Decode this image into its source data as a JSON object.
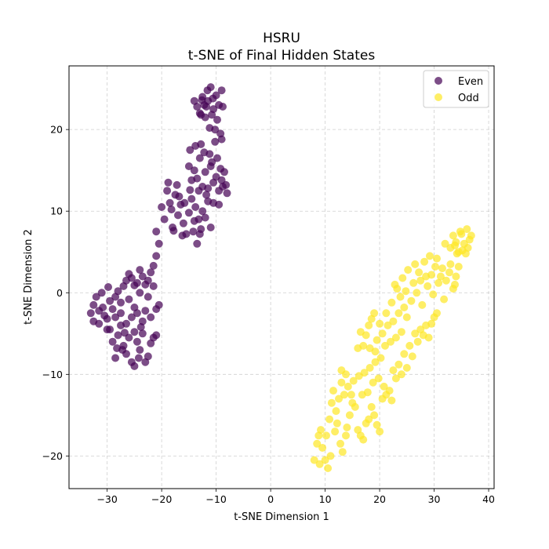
{
  "chart_data": {
    "type": "scatter",
    "title": "HSRU",
    "subtitle": "t-SNE of Final Hidden States",
    "xlabel": "t-SNE Dimension 1",
    "ylabel": "t-SNE Dimension 2",
    "xlim": [
      -37,
      41
    ],
    "ylim": [
      -24,
      27.8
    ],
    "xticks": [
      -30,
      -20,
      -10,
      0,
      10,
      20,
      30,
      40
    ],
    "yticks": [
      -20,
      -10,
      0,
      10,
      20
    ],
    "grid": true,
    "legend_position": "top-right",
    "series": [
      {
        "name": "Even",
        "color": "#440154",
        "points": [
          [
            -33.0,
            -2.5
          ],
          [
            -32.5,
            -1.5
          ],
          [
            -32.0,
            -0.5
          ],
          [
            -31.5,
            -3.8
          ],
          [
            -31.0,
            0.0
          ],
          [
            -30.5,
            -2.8
          ],
          [
            -30.0,
            -4.5
          ],
          [
            -29.5,
            -1.0
          ],
          [
            -29.0,
            -2.0
          ],
          [
            -28.5,
            -3.0
          ],
          [
            -30.8,
            -1.8
          ],
          [
            -29.8,
            0.7
          ],
          [
            -28.0,
            0.2
          ],
          [
            -27.5,
            -1.2
          ],
          [
            -27.0,
            0.8
          ],
          [
            -26.5,
            1.5
          ],
          [
            -26.0,
            2.3
          ],
          [
            -25.5,
            1.8
          ],
          [
            -25.0,
            0.9
          ],
          [
            -24.5,
            1.2
          ],
          [
            -24.0,
            2.8
          ],
          [
            -23.5,
            2.0
          ],
          [
            -23.0,
            1.0
          ],
          [
            -22.5,
            1.5
          ],
          [
            -22.0,
            2.5
          ],
          [
            -21.5,
            3.3
          ],
          [
            -21.0,
            4.5
          ],
          [
            -20.5,
            6.0
          ],
          [
            -29.0,
            -6.0
          ],
          [
            -28.5,
            -8.0
          ],
          [
            -28.0,
            -5.2
          ],
          [
            -27.5,
            -4.0
          ],
          [
            -27.0,
            -6.5
          ],
          [
            -26.5,
            -7.5
          ],
          [
            -26.0,
            -5.5
          ],
          [
            -25.5,
            -8.5
          ],
          [
            -25.0,
            -9.0
          ],
          [
            -24.5,
            -6.0
          ],
          [
            -24.0,
            -7.0
          ],
          [
            -23.5,
            -5.0
          ],
          [
            -23.0,
            -8.5
          ],
          [
            -22.5,
            -7.8
          ],
          [
            -22.0,
            -6.2
          ],
          [
            -21.5,
            -5.5
          ],
          [
            -23.5,
            -3.5
          ],
          [
            -24.5,
            -2.5
          ],
          [
            -25.5,
            -3.0
          ],
          [
            -26.5,
            -3.8
          ],
          [
            -25.0,
            -1.8
          ],
          [
            -23.0,
            -2.2
          ],
          [
            -22.0,
            -3.0
          ],
          [
            -21.0,
            -2.0
          ],
          [
            -22.5,
            -0.5
          ],
          [
            -24.0,
            0.0
          ],
          [
            -26.0,
            -0.8
          ],
          [
            -27.5,
            -2.5
          ],
          [
            -28.5,
            -0.5
          ],
          [
            -30.0,
            -3.2
          ],
          [
            -31.5,
            -2.2
          ],
          [
            -32.5,
            -3.5
          ],
          [
            -25.0,
            -4.8
          ],
          [
            -23.8,
            -4.2
          ],
          [
            -26.8,
            -4.9
          ],
          [
            -28.2,
            -6.8
          ],
          [
            -21.5,
            0.8
          ],
          [
            -20.5,
            -1.5
          ],
          [
            -21.0,
            -5.2
          ],
          [
            -24.2,
            -8.0
          ],
          [
            -27.2,
            -7.0
          ],
          [
            -29.5,
            -4.5
          ],
          [
            -21.0,
            7.5
          ],
          [
            -20.0,
            10.5
          ],
          [
            -19.5,
            9.0
          ],
          [
            -19.0,
            12.5
          ],
          [
            -18.5,
            11.0
          ],
          [
            -18.0,
            8.0
          ],
          [
            -17.5,
            12.0
          ],
          [
            -17.0,
            9.5
          ],
          [
            -16.5,
            10.8
          ],
          [
            -16.0,
            8.5
          ],
          [
            -15.5,
            7.2
          ],
          [
            -15.0,
            9.8
          ],
          [
            -14.5,
            11.5
          ],
          [
            -14.0,
            8.8
          ],
          [
            -13.5,
            6.0
          ],
          [
            -13.0,
            7.2
          ],
          [
            -12.5,
            10.0
          ],
          [
            -12.0,
            9.2
          ],
          [
            -11.5,
            11.2
          ],
          [
            -11.0,
            8.0
          ],
          [
            -18.8,
            13.5
          ],
          [
            -17.2,
            13.2
          ],
          [
            -16.8,
            11.8
          ],
          [
            -15.8,
            11.0
          ],
          [
            -14.8,
            12.6
          ],
          [
            -13.8,
            10.5
          ],
          [
            -13.2,
            9.0
          ],
          [
            -12.8,
            7.8
          ],
          [
            -18.2,
            10.2
          ],
          [
            -17.8,
            7.6
          ],
          [
            -16.2,
            7.0
          ],
          [
            -14.2,
            7.5
          ],
          [
            -15.0,
            15.5
          ],
          [
            -14.5,
            13.8
          ],
          [
            -14.0,
            15.0
          ],
          [
            -13.5,
            14.0
          ],
          [
            -13.0,
            16.5
          ],
          [
            -12.5,
            13.0
          ],
          [
            -12.0,
            14.8
          ],
          [
            -11.5,
            12.8
          ],
          [
            -11.0,
            15.5
          ],
          [
            -10.5,
            13.5
          ],
          [
            -10.0,
            14.2
          ],
          [
            -9.5,
            12.5
          ],
          [
            -9.0,
            13.8
          ],
          [
            -8.5,
            14.8
          ],
          [
            -8.0,
            12.2
          ],
          [
            -10.8,
            16.0
          ],
          [
            -9.2,
            15.2
          ],
          [
            -8.2,
            13.2
          ],
          [
            -12.2,
            17.2
          ],
          [
            -11.2,
            17.0
          ],
          [
            -10.2,
            18.5
          ],
          [
            -12.8,
            18.2
          ],
          [
            -9.8,
            16.5
          ],
          [
            -11.8,
            12.0
          ],
          [
            -13.2,
            12.5
          ],
          [
            -10.5,
            11.0
          ],
          [
            -9.5,
            10.8
          ],
          [
            -8.8,
            13.0
          ],
          [
            -14.8,
            17.5
          ],
          [
            -13.8,
            18.0
          ],
          [
            -14.0,
            23.5
          ],
          [
            -13.5,
            22.8
          ],
          [
            -13.0,
            22.0
          ],
          [
            -12.5,
            24.0
          ],
          [
            -12.0,
            21.5
          ],
          [
            -11.5,
            23.5
          ],
          [
            -11.0,
            25.2
          ],
          [
            -10.5,
            22.5
          ],
          [
            -10.0,
            24.2
          ],
          [
            -9.5,
            23.0
          ],
          [
            -9.0,
            24.8
          ],
          [
            -8.8,
            22.8
          ],
          [
            -12.8,
            21.8
          ],
          [
            -11.8,
            22.8
          ],
          [
            -10.8,
            21.8
          ],
          [
            -9.8,
            21.2
          ],
          [
            -12.2,
            23.0
          ],
          [
            -11.2,
            20.2
          ],
          [
            -10.2,
            20.0
          ],
          [
            -9.2,
            19.5
          ],
          [
            -9.0,
            18.8
          ],
          [
            -11.6,
            24.8
          ],
          [
            -10.6,
            23.8
          ],
          [
            -12.6,
            23.6
          ]
        ]
      },
      {
        "name": "Odd",
        "color": "#fde725",
        "points": [
          [
            8.0,
            -20.5
          ],
          [
            8.5,
            -18.5
          ],
          [
            9.0,
            -21.0
          ],
          [
            9.5,
            -19.0
          ],
          [
            10.0,
            -20.5
          ],
          [
            10.5,
            -21.5
          ],
          [
            11.0,
            -20.0
          ],
          [
            9.2,
            -16.8
          ],
          [
            8.8,
            -17.5
          ],
          [
            10.2,
            -17.5
          ],
          [
            10.8,
            -15.5
          ],
          [
            11.2,
            -13.5
          ],
          [
            11.5,
            -12.0
          ],
          [
            12.0,
            -14.5
          ],
          [
            12.5,
            -13.0
          ],
          [
            13.0,
            -11.0
          ],
          [
            13.5,
            -12.5
          ],
          [
            12.2,
            -16.0
          ],
          [
            11.8,
            -17.0
          ],
          [
            12.8,
            -18.5
          ],
          [
            13.2,
            -19.5
          ],
          [
            13.8,
            -17.5
          ],
          [
            14.0,
            -16.5
          ],
          [
            14.5,
            -15.0
          ],
          [
            15.0,
            -13.5
          ],
          [
            15.5,
            -14.0
          ],
          [
            16.0,
            -16.8
          ],
          [
            16.5,
            -17.5
          ],
          [
            17.0,
            -18.0
          ],
          [
            17.5,
            -16.0
          ],
          [
            18.0,
            -15.5
          ],
          [
            18.5,
            -14.0
          ],
          [
            19.0,
            -15.0
          ],
          [
            19.5,
            -16.2
          ],
          [
            20.0,
            -17.0
          ],
          [
            20.5,
            -13.0
          ],
          [
            13.0,
            -9.5
          ],
          [
            13.8,
            -10.0
          ],
          [
            14.2,
            -11.5
          ],
          [
            15.2,
            -10.8
          ],
          [
            16.2,
            -10.2
          ],
          [
            17.2,
            -9.8
          ],
          [
            18.2,
            -9.2
          ],
          [
            19.2,
            -8.5
          ],
          [
            20.2,
            -8.0
          ],
          [
            16.8,
            -12.5
          ],
          [
            17.8,
            -12.2
          ],
          [
            14.8,
            -12.5
          ],
          [
            19.8,
            -10.5
          ],
          [
            18.8,
            -11.0
          ],
          [
            20.8,
            -11.5
          ],
          [
            21.2,
            -12.5
          ],
          [
            21.8,
            -12.0
          ],
          [
            22.2,
            -13.2
          ],
          [
            22.5,
            -9.5
          ],
          [
            23.0,
            -10.5
          ],
          [
            23.5,
            -8.8
          ],
          [
            24.0,
            -10.0
          ],
          [
            24.5,
            -7.5
          ],
          [
            25.0,
            -9.2
          ],
          [
            25.5,
            -6.5
          ],
          [
            26.0,
            -7.8
          ],
          [
            26.5,
            -5.0
          ],
          [
            27.0,
            -6.0
          ],
          [
            27.5,
            -4.5
          ],
          [
            28.0,
            -5.2
          ],
          [
            28.5,
            -4.0
          ],
          [
            29.0,
            -5.5
          ],
          [
            29.5,
            -3.8
          ],
          [
            30.0,
            -3.0
          ],
          [
            30.5,
            -2.5
          ],
          [
            20.5,
            -5.0
          ],
          [
            21.0,
            -6.5
          ],
          [
            21.5,
            -4.0
          ],
          [
            22.0,
            -6.0
          ],
          [
            22.5,
            -3.5
          ],
          [
            23.0,
            -5.5
          ],
          [
            23.5,
            -2.5
          ],
          [
            24.0,
            -4.8
          ],
          [
            24.5,
            -1.8
          ],
          [
            25.0,
            -3.0
          ],
          [
            17.0,
            -6.5
          ],
          [
            17.5,
            -5.2
          ],
          [
            18.0,
            -4.0
          ],
          [
            18.5,
            -3.2
          ],
          [
            19.0,
            -2.5
          ],
          [
            19.5,
            -5.8
          ],
          [
            20.0,
            -3.8
          ],
          [
            16.0,
            -6.8
          ],
          [
            16.5,
            -4.8
          ],
          [
            18.2,
            -6.8
          ],
          [
            19.2,
            -7.2
          ],
          [
            21.2,
            -2.5
          ],
          [
            22.2,
            -1.2
          ],
          [
            23.2,
            0.5
          ],
          [
            24.2,
            1.8
          ],
          [
            25.2,
            2.8
          ],
          [
            26.2,
            1.2
          ],
          [
            27.2,
            2.5
          ],
          [
            28.2,
            3.8
          ],
          [
            29.2,
            4.5
          ],
          [
            30.2,
            3.2
          ],
          [
            31.2,
            2.0
          ],
          [
            32.2,
            1.5
          ],
          [
            22.8,
            1.0
          ],
          [
            23.8,
            -0.5
          ],
          [
            24.8,
            0.2
          ],
          [
            25.8,
            -1.0
          ],
          [
            26.8,
            0.0
          ],
          [
            27.8,
            -1.5
          ],
          [
            28.8,
            0.8
          ],
          [
            29.8,
            -0.2
          ],
          [
            30.8,
            1.2
          ],
          [
            31.8,
            -0.8
          ],
          [
            32.8,
            2.5
          ],
          [
            33.5,
            0.5
          ],
          [
            34.0,
            2.0
          ],
          [
            34.5,
            3.2
          ],
          [
            26.5,
            3.5
          ],
          [
            28.5,
            2.0
          ],
          [
            30.5,
            4.2
          ],
          [
            33.0,
            3.5
          ],
          [
            27.5,
            1.5
          ],
          [
            29.5,
            2.2
          ],
          [
            31.5,
            3.0
          ],
          [
            33.8,
            1.0
          ],
          [
            32.0,
            6.0
          ],
          [
            33.0,
            5.5
          ],
          [
            33.5,
            7.0
          ],
          [
            34.0,
            6.2
          ],
          [
            34.5,
            5.0
          ],
          [
            35.0,
            7.2
          ],
          [
            35.5,
            6.0
          ],
          [
            36.0,
            7.8
          ],
          [
            36.5,
            6.5
          ],
          [
            35.2,
            5.2
          ],
          [
            34.8,
            7.5
          ],
          [
            36.2,
            5.5
          ],
          [
            33.8,
            5.8
          ],
          [
            35.8,
            4.8
          ],
          [
            36.8,
            7.0
          ],
          [
            34.2,
            4.8
          ]
        ]
      }
    ]
  }
}
